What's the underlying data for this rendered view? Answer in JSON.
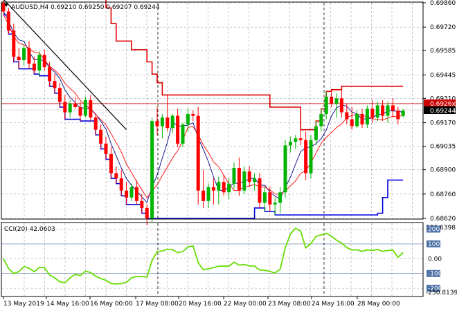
{
  "chart_data": [
    {
      "type": "candlestick",
      "header": "AUDUSD,H4  0.69210 0.69250 0.69207 0.69244",
      "symbol": "AUDUSD",
      "timeframe": "H4",
      "ohlc_readout": [
        "0.69210",
        "0.69250",
        "0.69207",
        "0.69244"
      ],
      "ylim": [
        0.6862,
        0.6986
      ],
      "y_ticks": [
        "0.69860",
        "0.69720",
        "0.69585",
        "0.69445",
        "0.69310",
        "0.69170",
        "0.69035",
        "0.68900",
        "0.68760",
        "0.68620"
      ],
      "current_price": 0.69244,
      "current_price_label": "0.69244",
      "hidden_price_label": "0.6926x",
      "horizontal_level": 0.6928,
      "x_tick_labels": [
        "13 May 2019",
        "14 May 16:00",
        "16 May 00:00",
        "17 May 08:00",
        "20 May 16:00",
        "22 May 00:00",
        "23 May 08:00",
        "24 May 16:00",
        "28 May 00:00"
      ],
      "candles": [
        [
          0.6986,
          0.6988,
          0.6979,
          0.6981
        ],
        [
          0.6981,
          0.6983,
          0.6968,
          0.697
        ],
        [
          0.697,
          0.6974,
          0.6952,
          0.6955
        ],
        [
          0.6955,
          0.696,
          0.6948,
          0.6953
        ],
        [
          0.6953,
          0.6962,
          0.695,
          0.696
        ],
        [
          0.696,
          0.6964,
          0.6948,
          0.6951
        ],
        [
          0.6951,
          0.6955,
          0.6945,
          0.6947
        ],
        [
          0.6947,
          0.6958,
          0.6944,
          0.6956
        ],
        [
          0.6956,
          0.6959,
          0.6947,
          0.6949
        ],
        [
          0.6949,
          0.6952,
          0.6938,
          0.6941
        ],
        [
          0.6941,
          0.6945,
          0.6934,
          0.6937
        ],
        [
          0.6937,
          0.694,
          0.6926,
          0.6929
        ],
        [
          0.6929,
          0.6933,
          0.6919,
          0.6923
        ],
        [
          0.6923,
          0.693,
          0.692,
          0.6928
        ],
        [
          0.6928,
          0.6932,
          0.6925,
          0.6926
        ],
        [
          0.6926,
          0.6929,
          0.6918,
          0.6921
        ],
        [
          0.6921,
          0.6932,
          0.692,
          0.693
        ],
        [
          0.693,
          0.6933,
          0.6918,
          0.692
        ],
        [
          0.692,
          0.6922,
          0.691,
          0.6913
        ],
        [
          0.6913,
          0.6916,
          0.6902,
          0.6905
        ],
        [
          0.6905,
          0.6909,
          0.6896,
          0.6899
        ],
        [
          0.6899,
          0.6903,
          0.6885,
          0.6888
        ],
        [
          0.6888,
          0.6892,
          0.6882,
          0.6885
        ],
        [
          0.6885,
          0.689,
          0.6875,
          0.6878
        ],
        [
          0.6878,
          0.6883,
          0.687,
          0.6874
        ],
        [
          0.6874,
          0.6882,
          0.6872,
          0.688
        ],
        [
          0.688,
          0.6884,
          0.687,
          0.6872
        ],
        [
          0.6872,
          0.6876,
          0.6865,
          0.6868
        ],
        [
          0.6868,
          0.687,
          0.6858,
          0.6862
        ],
        [
          0.6862,
          0.692,
          0.686,
          0.6918
        ],
        [
          0.6918,
          0.6926,
          0.691,
          0.6915
        ],
        [
          0.6915,
          0.6922,
          0.6908,
          0.692
        ],
        [
          0.692,
          0.6933,
          0.6912,
          0.6914
        ],
        [
          0.6914,
          0.6922,
          0.6911,
          0.6921
        ],
        [
          0.6921,
          0.6925,
          0.6903,
          0.6905
        ],
        [
          0.6905,
          0.6917,
          0.6903,
          0.6916
        ],
        [
          0.6916,
          0.6925,
          0.6912,
          0.6922
        ],
        [
          0.6922,
          0.6924,
          0.6918,
          0.6921
        ],
        [
          0.6921,
          0.6926,
          0.687,
          0.6878
        ],
        [
          0.6878,
          0.689,
          0.6868,
          0.6872
        ],
        [
          0.6872,
          0.6882,
          0.6868,
          0.688
        ],
        [
          0.688,
          0.6885,
          0.687,
          0.6878
        ],
        [
          0.6878,
          0.6886,
          0.687,
          0.6883
        ],
        [
          0.6883,
          0.6887,
          0.6875,
          0.6877
        ],
        [
          0.6877,
          0.6885,
          0.6873,
          0.6882
        ],
        [
          0.6882,
          0.6894,
          0.6879,
          0.6891
        ],
        [
          0.6891,
          0.6897,
          0.6875,
          0.6878
        ],
        [
          0.6878,
          0.6892,
          0.6876,
          0.6889
        ],
        [
          0.6889,
          0.6892,
          0.688,
          0.6883
        ],
        [
          0.6883,
          0.6888,
          0.6878,
          0.6885
        ],
        [
          0.6885,
          0.6888,
          0.6868,
          0.6871
        ],
        [
          0.6871,
          0.688,
          0.6866,
          0.6877
        ],
        [
          0.6877,
          0.688,
          0.6866,
          0.687
        ],
        [
          0.687,
          0.6874,
          0.6864,
          0.6871
        ],
        [
          0.6871,
          0.688,
          0.6865,
          0.6877
        ],
        [
          0.6877,
          0.6907,
          0.6874,
          0.6904
        ],
        [
          0.6904,
          0.6909,
          0.69,
          0.6906
        ],
        [
          0.6906,
          0.691,
          0.6902,
          0.6908
        ],
        [
          0.6908,
          0.6913,
          0.6904,
          0.6907
        ],
        [
          0.6907,
          0.6912,
          0.6884,
          0.6888
        ],
        [
          0.6888,
          0.691,
          0.6885,
          0.6907
        ],
        [
          0.6907,
          0.6918,
          0.6904,
          0.6915
        ],
        [
          0.6915,
          0.6925,
          0.6912,
          0.6922
        ],
        [
          0.6922,
          0.6935,
          0.6919,
          0.6932
        ],
        [
          0.6932,
          0.6936,
          0.6926,
          0.6928
        ],
        [
          0.6928,
          0.6934,
          0.692,
          0.6931
        ],
        [
          0.6931,
          0.6938,
          0.692,
          0.6923
        ],
        [
          0.6923,
          0.6928,
          0.6916,
          0.6919
        ],
        [
          0.6919,
          0.6926,
          0.6913,
          0.6915
        ],
        [
          0.6915,
          0.6924,
          0.6914,
          0.6922
        ],
        [
          0.6922,
          0.6925,
          0.6914,
          0.6916
        ],
        [
          0.6916,
          0.6927,
          0.6914,
          0.6925
        ],
        [
          0.6925,
          0.693,
          0.6917,
          0.692
        ],
        [
          0.692,
          0.6929,
          0.6918,
          0.6927
        ],
        [
          0.6927,
          0.693,
          0.6918,
          0.6921
        ],
        [
          0.6921,
          0.6929,
          0.6917,
          0.6927
        ],
        [
          0.6927,
          0.6931,
          0.692,
          0.6924
        ],
        [
          0.6924,
          0.6926,
          0.6916,
          0.6919
        ],
        [
          0.6921,
          0.6925,
          0.692,
          0.6924
        ]
      ],
      "indicators": {
        "colors": {
          "bull": "#00b400",
          "bear": "#ff0000",
          "ma_fast": "#ff0000",
          "ma_slow": "#00008b",
          "channel_red": "#e00000",
          "channel_blue": "#0000dd",
          "trend": "#000000",
          "level": "#c00000",
          "cci": "#66dd00"
        }
      },
      "cci": {
        "label": "CCI(20) 42.0603",
        "period": 20,
        "value": 42.0603,
        "ylim": [
          -250.8139,
          239.6398
        ],
        "max_label": "239.6398",
        "min_label": "-250.8139",
        "levels": [
          {
            "value": 200,
            "label": "200"
          },
          {
            "value": 100,
            "label": "100"
          },
          {
            "value": -100,
            "label": "-100"
          },
          {
            "value": -200,
            "label": "-200"
          }
        ],
        "zero_label": "0.00"
      }
    }
  ]
}
